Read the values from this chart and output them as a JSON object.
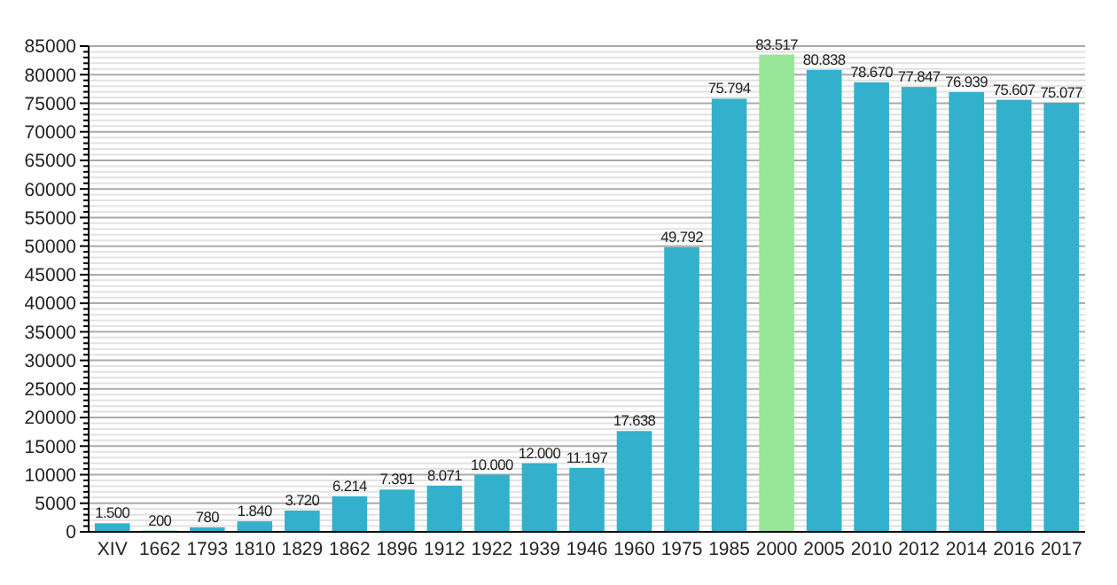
{
  "chart_data": {
    "type": "bar",
    "categories": [
      "XIV",
      "1662",
      "1793",
      "1810",
      "1829",
      "1862",
      "1896",
      "1912",
      "1922",
      "1939",
      "1946",
      "1960",
      "1975",
      "1985",
      "2000",
      "2005",
      "2010",
      "2012",
      "2014",
      "2016",
      "2017"
    ],
    "values": [
      1500,
      200,
      780,
      1840,
      3720,
      6214,
      7391,
      8071,
      10000,
      12000,
      11197,
      17638,
      49792,
      75794,
      83517,
      80838,
      78670,
      77847,
      76939,
      75607,
      75077
    ],
    "value_labels": [
      "1.500",
      "200",
      "780",
      "1.840",
      "3.720",
      "6.214",
      "7.391",
      "8.071",
      "10.000",
      "12.000",
      "11.197",
      "17.638",
      "49.792",
      "75.794",
      "83.517",
      "80.838",
      "78.670",
      "77.847",
      "76.939",
      "75.607",
      "75.077"
    ],
    "colors": [
      "#33b0cc",
      "#33b0cc",
      "#33b0cc",
      "#33b0cc",
      "#33b0cc",
      "#33b0cc",
      "#33b0cc",
      "#33b0cc",
      "#33b0cc",
      "#33b0cc",
      "#33b0cc",
      "#33b0cc",
      "#33b0cc",
      "#33b0cc",
      "#98e698",
      "#33b0cc",
      "#33b0cc",
      "#33b0cc",
      "#33b0cc",
      "#33b0cc",
      "#33b0cc"
    ],
    "ylim": [
      0,
      85000
    ],
    "yticks": [
      0,
      {
        "value": 1000,
        "label": null
      },
      {
        "value": 2000,
        "label": null
      },
      {
        "value": 3000,
        "label": null
      },
      {
        "value": 4000,
        "label": null
      },
      5000,
      {
        "value": 6000,
        "label": null
      },
      {
        "value": 7000,
        "label": null
      },
      {
        "value": 8000,
        "label": null
      },
      {
        "value": 9000,
        "label": null
      },
      10000,
      {
        "value": 11000,
        "label": null
      },
      {
        "value": 12000,
        "label": null
      },
      {
        "value": 13000,
        "label": null
      },
      {
        "value": 14000,
        "label": null
      },
      15000,
      {
        "value": 16000,
        "label": null
      },
      {
        "value": 17000,
        "label": null
      },
      {
        "value": 18000,
        "label": null
      },
      {
        "value": 19000,
        "label": null
      },
      20000,
      {
        "value": 21000,
        "label": null
      },
      {
        "value": 22000,
        "label": null
      },
      {
        "value": 23000,
        "label": null
      },
      {
        "value": 24000,
        "label": null
      },
      25000,
      {
        "value": 26000,
        "label": null
      },
      {
        "value": 27000,
        "label": null
      },
      {
        "value": 28000,
        "label": null
      },
      {
        "value": 29000,
        "label": null
      },
      30000,
      {
        "value": 31000,
        "label": null
      },
      {
        "value": 32000,
        "label": null
      },
      {
        "value": 33000,
        "label": null
      },
      {
        "value": 34000,
        "label": null
      },
      35000,
      {
        "value": 36000,
        "label": null
      },
      {
        "value": 37000,
        "label": null
      },
      {
        "value": 38000,
        "label": null
      },
      {
        "value": 39000,
        "label": null
      },
      40000,
      {
        "value": 41000,
        "label": null
      },
      {
        "value": 42000,
        "label": null
      },
      {
        "value": 43000,
        "label": null
      },
      {
        "value": 44000,
        "label": null
      },
      45000,
      {
        "value": 46000,
        "label": null
      },
      {
        "value": 47000,
        "label": null
      },
      {
        "value": 48000,
        "label": null
      },
      {
        "value": 49000,
        "label": null
      },
      50000,
      {
        "value": 51000,
        "label": null
      },
      {
        "value": 52000,
        "label": null
      },
      {
        "value": 53000,
        "label": null
      },
      {
        "value": 54000,
        "label": null
      },
      55000,
      {
        "value": 56000,
        "label": null
      },
      {
        "value": 57000,
        "label": null
      },
      {
        "value": 58000,
        "label": null
      },
      {
        "value": 59000,
        "label": null
      },
      60000,
      {
        "value": 61000,
        "label": null
      },
      {
        "value": 62000,
        "label": null
      },
      {
        "value": 63000,
        "label": null
      },
      {
        "value": 64000,
        "label": null
      },
      65000,
      {
        "value": 66000,
        "label": null
      },
      {
        "value": 67000,
        "label": null
      },
      {
        "value": 68000,
        "label": null
      },
      {
        "value": 69000,
        "label": null
      },
      70000,
      {
        "value": 71000,
        "label": null
      },
      {
        "value": 72000,
        "label": null
      },
      {
        "value": 73000,
        "label": null
      },
      {
        "value": 74000,
        "label": null
      },
      75000,
      {
        "value": 76000,
        "label": null
      },
      {
        "value": 77000,
        "label": null
      },
      {
        "value": 78000,
        "label": null
      },
      {
        "value": 79000,
        "label": null
      },
      80000,
      {
        "value": 81000,
        "label": null
      },
      {
        "value": 82000,
        "label": null
      },
      {
        "value": 83000,
        "label": null
      },
      {
        "value": 84000,
        "label": null
      },
      85000
    ],
    "grid": "y"
  }
}
